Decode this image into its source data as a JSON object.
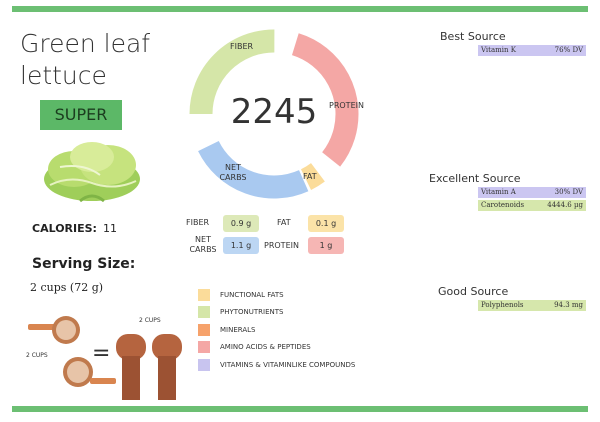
{
  "food": {
    "title_line1": "Green leaf",
    "title_line2": "lettuce",
    "badge": "SUPER",
    "calories_label": "CALORIES:",
    "calories_value": "11",
    "serving_label": "Serving Size:",
    "serving_value": "2 cups (72 g)",
    "measure_left_label": "2 CUPS",
    "measure_right_label": "2 CUPS",
    "measure_equals": "="
  },
  "donut": {
    "total": "2245",
    "segments": [
      {
        "label": "FIBER",
        "color": "#d5e6a8"
      },
      {
        "label": "PROTEIN",
        "color": "#f4a7a5"
      },
      {
        "label": "FAT",
        "color": "#fbdc9a"
      },
      {
        "label": "NET CARBS",
        "color": "#a9c9f0"
      }
    ]
  },
  "macros": {
    "fiber": {
      "label": "FIBER",
      "value": "0.9 g",
      "color": "#dde9b8"
    },
    "fat": {
      "label": "FAT",
      "value": "0.1 g",
      "color": "#fbe3a8"
    },
    "net_carbs": {
      "label_line1": "NET",
      "label_line2": "CARBS",
      "value": "1.1 g",
      "color": "#bcd6f3"
    },
    "protein": {
      "label": "PROTEIN",
      "value": "1 g",
      "color": "#f6b6b4"
    }
  },
  "legend": [
    {
      "label": "FUNCTIONAL FATS",
      "color": "#fbdc9a"
    },
    {
      "label": "PHYTONUTRIENTS",
      "color": "#d5e6a8"
    },
    {
      "label": "MINERALS",
      "color": "#f6a26b"
    },
    {
      "label": "AMINO ACIDS & PEPTIDES",
      "color": "#f4a7a5"
    },
    {
      "label": "VITAMINS & VITAMINLIKE COMPOUNDS",
      "color": "#c8c4ef"
    }
  ],
  "sources": {
    "best": {
      "heading": "Best Source",
      "items": [
        {
          "name": "Vitamin K",
          "value": "76% DV",
          "color": "#cbc6f1"
        }
      ]
    },
    "excellent": {
      "heading": "Excellent Source",
      "items": [
        {
          "name": "Vitamin A",
          "value": "30% DV",
          "color": "#cbc6f1"
        },
        {
          "name": "Carotenoids",
          "value": "4444.6 µg",
          "color": "#d6e7ac"
        }
      ]
    },
    "good": {
      "heading": "Good Source",
      "items": [
        {
          "name": "Polyphenols",
          "value": "94.3 mg",
          "color": "#d6e7ac"
        }
      ]
    }
  }
}
